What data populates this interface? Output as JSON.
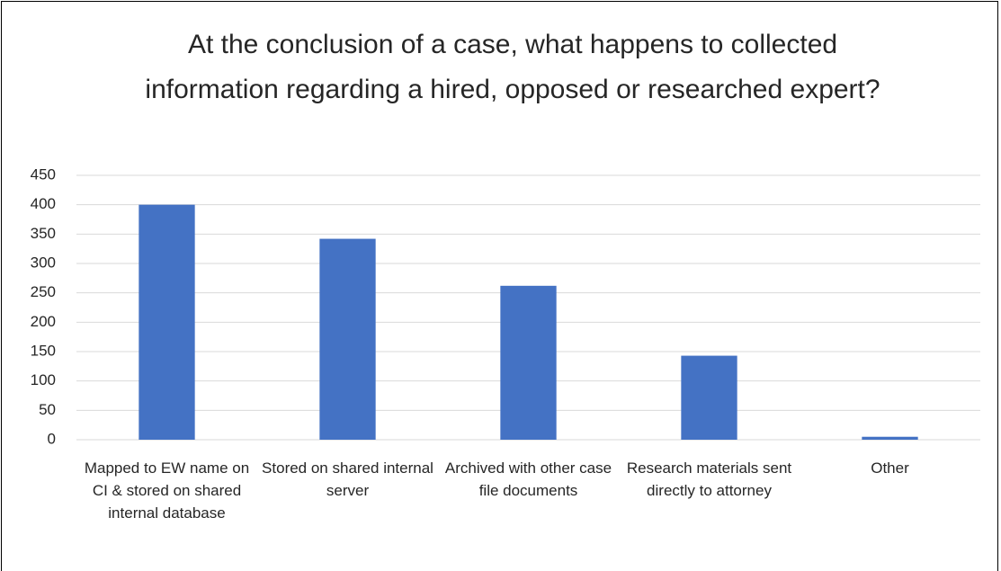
{
  "chart_data": {
    "type": "bar",
    "title": "At the conclusion of a case, what happens to collected information regarding a hired, opposed or researched expert?",
    "categories": [
      "Mapped to EW name on CI & stored on shared internal database",
      "Stored on shared internal server",
      "Archived with other case file documents",
      "Research materials sent directly to attorney",
      "Other"
    ],
    "values": [
      400,
      342,
      262,
      143,
      5
    ],
    "color": "#4472c4",
    "ylim": [
      0,
      450
    ],
    "yticks": [
      0,
      50,
      100,
      150,
      200,
      250,
      300,
      350,
      400,
      450
    ],
    "grid": true
  }
}
